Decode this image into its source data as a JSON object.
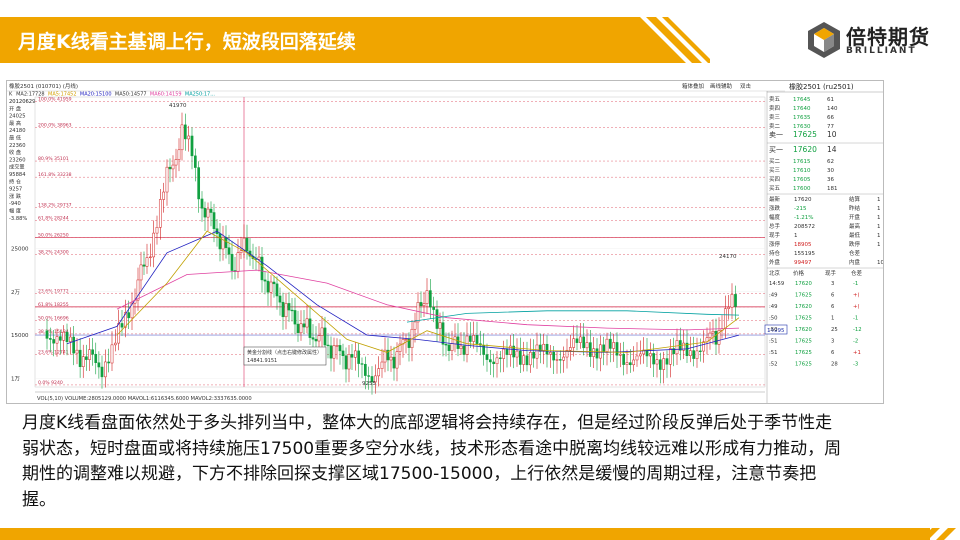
{
  "slide": {
    "title": "月度K线看主基调上行，短波段回落延续",
    "brand_name": "倍特期货",
    "brand_sub": "BRILLIANT",
    "body": "月度K线看盘面依然处于多头排列当中，整体大的底部逻辑将会持续存在，但是经过阶段反弹后处于季节性走弱状态，短时盘面或将持续施压17500重要多空分水线，技术形态看途中脱离均线较远难以形成有力推动，周期性的调整难以规避，下方不排除回探支撑区域17500-15000，上行依然是缓慢的周期过程，注意节奏把握。",
    "accent": "#f0a500"
  },
  "chart": {
    "header_left": "橡胶2501 (010701) (月线)",
    "toolbar_right": [
      "箱体叠加",
      "画线辅助",
      "双击"
    ],
    "ma_line": [
      {
        "label": "K",
        "color": "#333333"
      },
      {
        "label": "MA2:17728",
        "color": "#333333"
      },
      {
        "label": "MA5:17452",
        "color": "#d4a000"
      },
      {
        "label": "MA20:15100",
        "color": "#2020c0"
      },
      {
        "label": "MA50:14577",
        "color": "#333333"
      },
      {
        "label": "MA60:14159",
        "color": "#e040a0"
      },
      {
        "label": "MA250:17...",
        "color": "#00a0a0"
      }
    ],
    "left_info": [
      "20120629",
      "开  盘",
      "24025",
      "最  高",
      "24180",
      "最  低",
      "22360",
      "收  盘",
      "23260",
      "成交量",
      "95884",
      "持  仓",
      "9257",
      "涨  跌",
      "-940",
      "幅  度",
      "-3.88%"
    ],
    "price_labels": [
      "25000",
      "2万",
      "15000",
      "1万"
    ],
    "fib_labels": [
      "100.0% 41959",
      "200.0% 38963",
      "80.9% 35101",
      "161.8% 33238",
      "138.2% 29737",
      "61.8% 28244",
      "50.0% 26250",
      "38.2% 24300",
      "23.6% 19772",
      "61.8% 18255",
      "50.0% 16696",
      "38.2% 15134",
      "23.6% 12741",
      "0.0% 9240"
    ],
    "annotations": [
      "41970",
      "24170",
      "9255",
      "14995",
      "黄金分割线（点击右键修改属性）",
      "14841.9151"
    ],
    "volume_label": "VOL(5,10) VOLUME:2805129.0000 MAVOL1:6116345.6000 MAVOL2:3337635.0000",
    "quote_title": "橡胶2501 (ru2501)",
    "asks": [
      {
        "name": "卖五",
        "price": "17645",
        "vol": "61"
      },
      {
        "name": "卖四",
        "price": "17640",
        "vol": "140"
      },
      {
        "name": "卖三",
        "price": "17635",
        "vol": "66"
      },
      {
        "name": "卖二",
        "price": "17630",
        "vol": "77"
      },
      {
        "name": "卖一",
        "price": "17625",
        "vol": "10"
      }
    ],
    "bids": [
      {
        "name": "买一",
        "price": "17620",
        "vol": "14"
      },
      {
        "name": "买二",
        "price": "17615",
        "vol": "62"
      },
      {
        "name": "买三",
        "price": "17610",
        "vol": "30"
      },
      {
        "name": "买四",
        "price": "17605",
        "vol": "36"
      },
      {
        "name": "买五",
        "price": "17600",
        "vol": "181"
      }
    ],
    "stats": [
      {
        "k1": "最新",
        "v1": "17620",
        "k2": "结算",
        "v2": "1"
      },
      {
        "k1": "涨跌",
        "v1": "-215",
        "k2": "昨结",
        "v2": "1"
      },
      {
        "k1": "幅度",
        "v1": "-1.21%",
        "k2": "开盘",
        "v2": "1"
      },
      {
        "k1": "总手",
        "v1": "208572",
        "k2": "最高",
        "v2": "1"
      },
      {
        "k1": "现手",
        "v1": "1",
        "k2": "最低",
        "v2": "1"
      },
      {
        "k1": "涨停",
        "v1": "18905",
        "k2": "跌停",
        "v2": "1"
      },
      {
        "k1": "持仓",
        "v1": "155195",
        "k2": "仓差",
        "v2": ""
      },
      {
        "k1": "外盘",
        "v1": "99497",
        "k2": "内盘",
        "v2": "10"
      }
    ],
    "ticks_header": [
      "北京",
      "价格",
      "现手",
      "仓差"
    ],
    "ticks": [
      {
        "t": "14:59",
        "p": "17620",
        "v": "3",
        "d": "-1"
      },
      {
        "t": ":49",
        "p": "17625",
        "v": "6",
        "d": "+("
      },
      {
        "t": ":49",
        "p": "17620",
        "v": "6",
        "d": "+("
      },
      {
        "t": ":50",
        "p": "17625",
        "v": "1",
        "d": "-1"
      },
      {
        "t": ":50",
        "p": "17620",
        "v": "25",
        "d": "-12"
      },
      {
        "t": ":51",
        "p": "17625",
        "v": "3",
        "d": "-2"
      },
      {
        "t": ":51",
        "p": "17625",
        "v": "6",
        "d": "+1"
      },
      {
        "t": ":52",
        "p": "17625",
        "v": "28",
        "d": "-3"
      }
    ]
  }
}
